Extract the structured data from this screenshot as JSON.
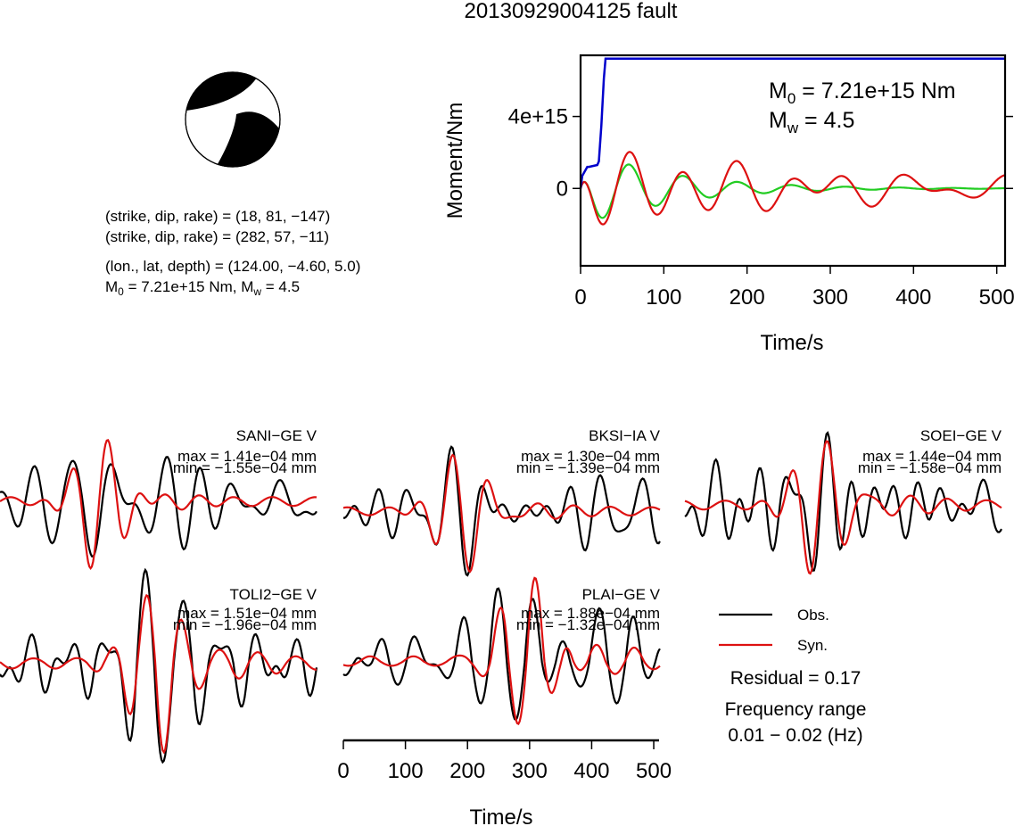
{
  "title": "20130929004125 fault",
  "focal_mechanism": {
    "planes": [
      {
        "strike": 18,
        "dip": 81,
        "rake": -147
      },
      {
        "strike": 282,
        "dip": 57,
        "rake": -11
      }
    ],
    "texts": {
      "plane1": "(strike, dip, rake) = (18, 81, −147)",
      "plane2": "(strike, dip, rake) = (282, 57, −11)",
      "location": "(lon., lat, depth) = (124.00, −4.60, 5.0)",
      "moment_m0": "M",
      "moment_m0_sub": "0",
      "moment_rest": " = 7.21e+15 Nm, M",
      "moment_mw_sub": "w",
      "moment_tail": " = 4.5"
    }
  },
  "colors": {
    "observed": "#000000",
    "synthetic": "#dd1111",
    "moment_rate": "#22cc22",
    "cumulative_moment": "#0000cc",
    "frame": "#000000",
    "beachball_fill": "#000000"
  },
  "chart_data": [
    {
      "type": "line",
      "name": "moment-function",
      "xlabel": "Time/s",
      "ylabel": "Moment/Nm",
      "xlim": [
        0,
        510
      ],
      "ylim": [
        -4300000000000000.0,
        7400000000000000.0
      ],
      "xticks": [
        0,
        100,
        200,
        300,
        400,
        500
      ],
      "xtick_labels": [
        "0",
        "100",
        "200",
        "300",
        "400",
        "500"
      ],
      "yticks": [
        0,
        4000000000000000.0
      ],
      "ytick_labels": [
        "0",
        "4e+15"
      ],
      "annotation": {
        "m0_label": "M",
        "m0_sub": "0",
        "m0_value": " = 7.21e+15 Nm",
        "mw_label": "M",
        "mw_sub": "w",
        "mw_value": " = 4.5"
      },
      "cumulative": {
        "x": [
          0,
          2,
          8,
          10,
          20,
          22,
          25,
          28,
          30,
          35,
          510
        ],
        "y": [
          0,
          700000000000000.0,
          1200000000000000.0,
          1200000000000000.0,
          1300000000000000.0,
          1500000000000000.0,
          3500000000000000.0,
          6100000000000000.0,
          7210000000000000.0,
          7210000000000000.0,
          7210000000000000.0
        ]
      },
      "oscillation": {
        "decay_time": 100,
        "lines": [
          {
            "periods": [
              65
            ],
            "amplitudes": [
              2400000000000000.0
            ],
            "phases": [
              0
            ],
            "drift": 0
          },
          {
            "periods": [
              65,
              110
            ],
            "amplitudes": [
              2400000000000000.0,
              500000000000000.0
            ],
            "phases": [
              0,
              1.2
            ],
            "drift": 0
          }
        ]
      }
    },
    {
      "type": "line",
      "name": "waveforms",
      "xlabel": "Time/s",
      "xlim": [
        0,
        510
      ],
      "xticks": [
        0,
        100,
        200,
        300,
        400,
        500
      ],
      "xtick_labels": [
        "0",
        "100",
        "200",
        "300",
        "400",
        "500"
      ],
      "legend": {
        "observed": "Obs.",
        "synthetic": "Syn."
      },
      "residual": "Residual = 0.17",
      "frequency_label": "Frequency range",
      "frequency_value": "0.01 − 0.02 (Hz)",
      "stations": [
        {
          "name": "SANI−GE V",
          "max": "max = 1.41e−04 mm",
          "min": "min = −1.55e−04 mm",
          "max_value": 0.000141,
          "min_value": -0.000155,
          "pulse_time": 160,
          "noise_period": 55
        },
        {
          "name": "BKSI−IA V",
          "max": "max = 1.30e−04 mm",
          "min": "min = −1.39e−04 mm",
          "max_value": 0.00013,
          "min_value": -0.000139,
          "pulse_time": 190,
          "noise_period": 60
        },
        {
          "name": "SOEI−GE V",
          "max": "max = 1.44e−04 mm",
          "min": "min = −1.58e−04 mm",
          "max_value": 0.000144,
          "min_value": -0.000158,
          "pulse_time": 215,
          "noise_period": 50
        },
        {
          "name": "TOLI2−GE V",
          "max": "max = 1.51e−04 mm",
          "min": "min = −1.96e−04 mm",
          "max_value": 0.000151,
          "min_value": -0.000196,
          "pulse_time": 250,
          "noise_period": 58
        },
        {
          "name": "PLAI−GE V",
          "max": "max = 1.88e−04 mm",
          "min": "min = −1.32e−04 mm",
          "max_value": 0.000188,
          "min_value": -0.000132,
          "pulse_time": 295,
          "noise_period": 52
        }
      ]
    }
  ]
}
